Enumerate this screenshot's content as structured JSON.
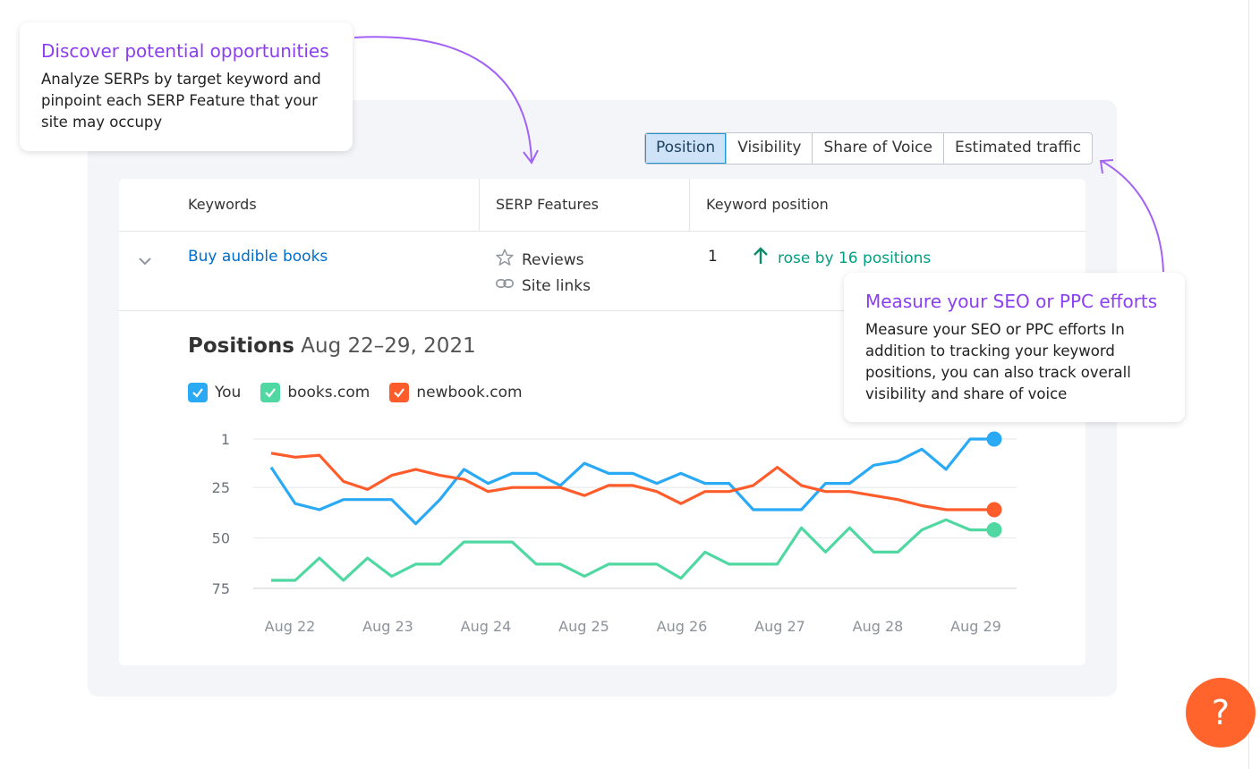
{
  "tabs": [
    "Position",
    "Visibility",
    "Share of Voice",
    "Estimated traffic"
  ],
  "active_tab": "Position",
  "table": {
    "headers": {
      "keywords": "Keywords",
      "serp": "SERP Features",
      "position": "Keyword position"
    },
    "row": {
      "keyword": "Buy audible books",
      "features": [
        {
          "label": "Reviews",
          "icon": "star-icon"
        },
        {
          "label": "Site links",
          "icon": "link-icon"
        }
      ],
      "position": "1",
      "change": "rose by 16 positions"
    }
  },
  "positions": {
    "title_bold": "Positions",
    "range": "Aug 22–29, 2021"
  },
  "legend": [
    {
      "label": "You",
      "color": "#2aa9f5"
    },
    {
      "label": "books.com",
      "color": "#50d8a2"
    },
    {
      "label": "newbook.com",
      "color": "#ff5c2b"
    }
  ],
  "callouts": {
    "left": {
      "title": "Discover potential opportunities",
      "body": "Analyze SERPs by target keyword and pinpoint each SERP Feature that your site may occupy"
    },
    "right": {
      "title": "Measure your SEO or PPC efforts",
      "body": "Measure your SEO or PPC efforts In addition to tracking your keyword positions, you can also track overall visibility and share of voice"
    }
  },
  "help_label": "?",
  "chart_data": {
    "type": "line",
    "y_ticks": [
      "1",
      "25",
      "50",
      "75"
    ],
    "ylim": [
      1,
      75
    ],
    "y_inverted": true,
    "x_ticks": [
      "Aug 22",
      "Aug 23",
      "Aug 24",
      "Aug 25",
      "Aug 26",
      "Aug 27",
      "Aug 28",
      "Aug 29"
    ],
    "points_per_series": 31,
    "series": [
      {
        "name": "You",
        "color": "#2aa9f5",
        "values": [
          15,
          33,
          36,
          31,
          31,
          31,
          43,
          31,
          16,
          23,
          18,
          18,
          24,
          13,
          18,
          18,
          23,
          18,
          23,
          23,
          36,
          36,
          36,
          23,
          23,
          14,
          12,
          6,
          16,
          1,
          1
        ]
      },
      {
        "name": "books.com",
        "color": "#50d8a2",
        "values": [
          71,
          71,
          60,
          71,
          60,
          69,
          63,
          63,
          52,
          52,
          52,
          63,
          63,
          69,
          63,
          63,
          63,
          70,
          57,
          63,
          63,
          63,
          45,
          57,
          45,
          57,
          57,
          46,
          41,
          46,
          46
        ]
      },
      {
        "name": "newbook.com",
        "color": "#ff5c2b",
        "values": [
          8,
          10,
          9,
          22,
          26,
          19,
          16,
          19,
          21,
          27,
          25,
          25,
          25,
          29,
          24,
          24,
          27,
          33,
          27,
          27,
          24,
          15,
          24,
          27,
          27,
          29,
          31,
          34,
          36,
          36,
          36
        ]
      }
    ]
  }
}
